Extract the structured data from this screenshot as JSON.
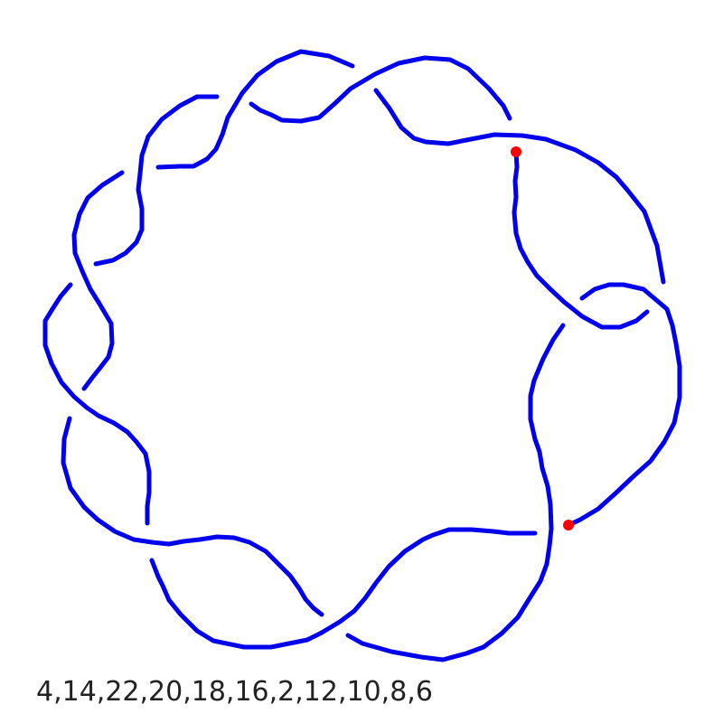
{
  "diagram": {
    "type": "knot-diagram",
    "strand_color": "#0000ee",
    "endpoint_color": "#ff0000",
    "endpoint_count": 2
  },
  "dowker_code": "4,14,22,20,18,16,2,12,10,8,6"
}
